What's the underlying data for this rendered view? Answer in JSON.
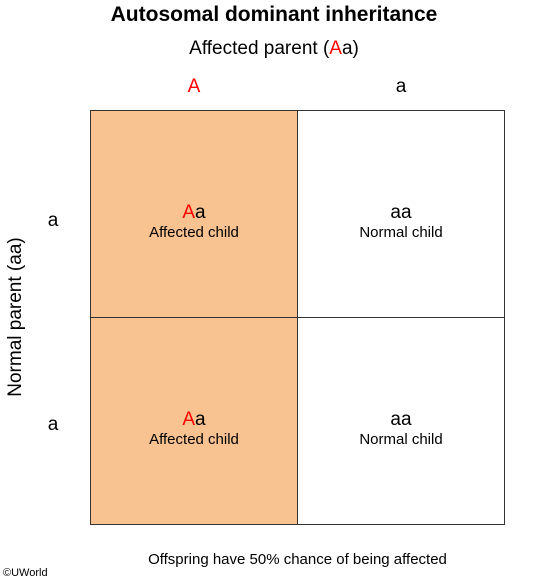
{
  "title": "Autosomal dominant inheritance",
  "top_parent": {
    "label_prefix": "Affected parent (",
    "allele_dominant": "A",
    "label_suffix": "a)"
  },
  "side_parent": {
    "label": "Normal parent (aa)"
  },
  "columns": [
    {
      "allele": "A",
      "color": "#ff0000"
    },
    {
      "allele": "a",
      "color": "#000000"
    }
  ],
  "rows": [
    {
      "allele": "a"
    },
    {
      "allele": "a"
    }
  ],
  "cells": [
    [
      {
        "geno_dominant": "A",
        "geno_rest": "a",
        "phenotype": "Affected child",
        "fill": "#f8c291"
      },
      {
        "geno_dominant": "",
        "geno_rest": "aa",
        "phenotype": "Normal child",
        "fill": "#ffffff"
      }
    ],
    [
      {
        "geno_dominant": "A",
        "geno_rest": "a",
        "phenotype": "Affected child",
        "fill": "#f8c291"
      },
      {
        "geno_dominant": "",
        "geno_rest": "aa",
        "phenotype": "Normal child",
        "fill": "#ffffff"
      }
    ]
  ],
  "footer": "Offspring have 50% chance of being affected",
  "credit": "©UWorld",
  "colors": {
    "dominant_allele": "#ff0000",
    "affected_fill": "#f8c291",
    "grid_line": "#333333"
  }
}
